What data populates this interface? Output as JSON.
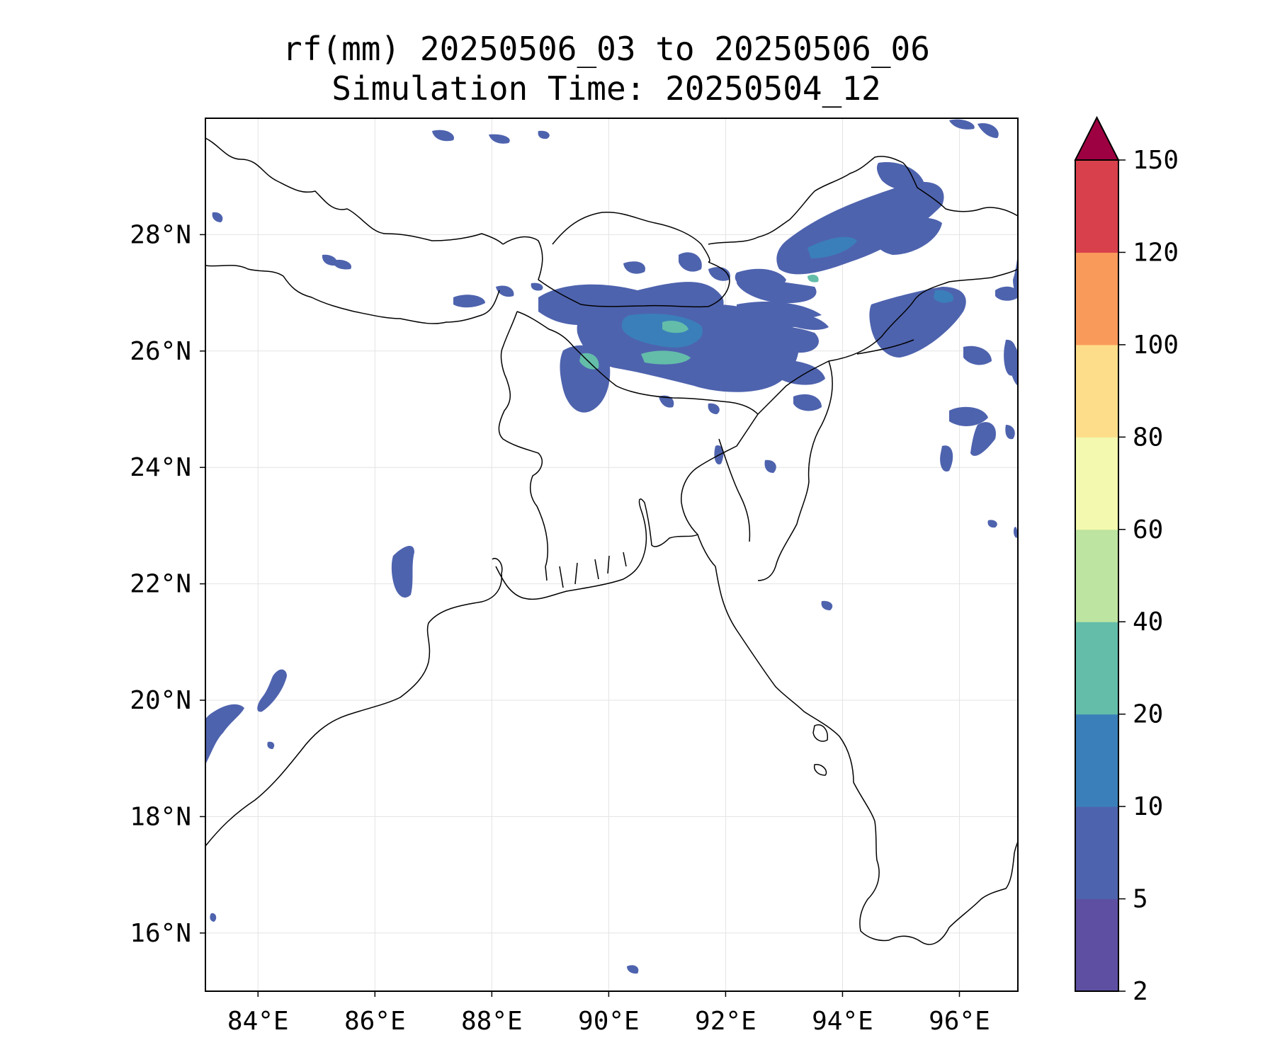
{
  "map": {
    "title_line1": "rf(mm) 20250506_03 to 20250506_06",
    "title_line2": "Simulation Time: 20250504_12",
    "lon_ticks": [
      {
        "value": 84,
        "label": "84°E"
      },
      {
        "value": 86,
        "label": "86°E"
      },
      {
        "value": 88,
        "label": "88°E"
      },
      {
        "value": 90,
        "label": "90°E"
      },
      {
        "value": 92,
        "label": "92°E"
      },
      {
        "value": 94,
        "label": "94°E"
      },
      {
        "value": 96,
        "label": "96°E"
      }
    ],
    "lat_ticks": [
      {
        "value": 16,
        "label": "16°N"
      },
      {
        "value": 18,
        "label": "18°N"
      },
      {
        "value": 20,
        "label": "20°N"
      },
      {
        "value": 22,
        "label": "22°N"
      },
      {
        "value": 24,
        "label": "24°N"
      },
      {
        "value": 26,
        "label": "26°N"
      },
      {
        "value": 28,
        "label": "28°N"
      }
    ],
    "extent": {
      "lon_min": 83.1,
      "lon_max": 97.0,
      "lat_min": 15.0,
      "lat_max": 30.0
    }
  },
  "colorbar": {
    "ticks": [
      "2",
      "5",
      "10",
      "20",
      "40",
      "60",
      "80",
      "100",
      "120",
      "150"
    ],
    "colors": [
      "#5e4fa2",
      "#4e63ae",
      "#3a7fba",
      "#63bda9",
      "#bde4a0",
      "#f3f9ae",
      "#fddd89",
      "#f99a5a",
      "#d8404c",
      "#9e0142"
    ],
    "extend": "max"
  }
}
